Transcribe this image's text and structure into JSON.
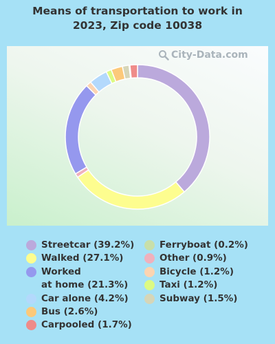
{
  "chart_data": {
    "type": "pie",
    "title": "Means of transportation to work in 2023, Zip code 10038",
    "slices": [
      {
        "label": "Streetcar (39.2%)",
        "value": 39.2,
        "color": "#bba9dc"
      },
      {
        "label": "Walked (27.1%)",
        "value": 27.1,
        "color": "#fdfd8f"
      },
      {
        "label": "Other (0.9%)",
        "value": 0.9,
        "color": "#f0b1bd"
      },
      {
        "label": "Worked at home (21.3%)",
        "value": 21.3,
        "color": "#9598ee"
      },
      {
        "label": "Bicycle (1.2%)",
        "value": 1.2,
        "color": "#fcd4b1"
      },
      {
        "label": "Car alone (4.2%)",
        "value": 4.2,
        "color": "#b3d9fc"
      },
      {
        "label": "Taxi (1.2%)",
        "value": 1.2,
        "color": "#dcfa83"
      },
      {
        "label": "Bus (2.6%)",
        "value": 2.6,
        "color": "#fcc97a"
      },
      {
        "label": "Subway (1.5%)",
        "value": 1.5,
        "color": "#d6d6b8"
      },
      {
        "label": "Ferryboat (0.2%)",
        "value": 0.2,
        "color": "#c8dfa9"
      },
      {
        "label": "Carpooled (1.7%)",
        "value": 1.7,
        "color": "#ef8b89"
      }
    ],
    "legend_left": [
      {
        "line1": "Streetcar (39.2%)",
        "color": "#bba9dc"
      },
      {
        "line1": "Walked (27.1%)",
        "color": "#fdfd8f"
      },
      {
        "line1": "Worked",
        "line2": "at home (21.3%)",
        "color": "#9598ee"
      },
      {
        "line1": "Car alone (4.2%)",
        "color": "#b3d9fc"
      },
      {
        "line1": "Bus (2.6%)",
        "color": "#fcc97a"
      },
      {
        "line1": "Carpooled (1.7%)",
        "color": "#ef8b89"
      }
    ],
    "legend_right": [
      {
        "line1": "Ferryboat (0.2%)",
        "color": "#c8dfa9"
      },
      {
        "line1": "Other (0.9%)",
        "color": "#f0b1bd"
      },
      {
        "line1": "Bicycle (1.2%)",
        "color": "#fcd4b1"
      },
      {
        "line1": "Taxi (1.2%)",
        "color": "#dcfa83"
      },
      {
        "line1": "Subway (1.5%)",
        "color": "#d6d6b8"
      }
    ]
  },
  "header": {
    "title_line1": "Means of transportation to work in",
    "title_line2": "2023, Zip code 10038"
  },
  "watermark": {
    "text": "City-Data.com",
    "icon": "magnifier-icon"
  }
}
